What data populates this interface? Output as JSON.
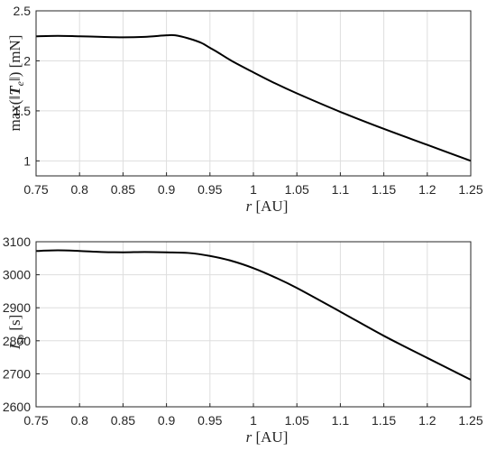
{
  "chart_data": [
    {
      "type": "line",
      "xlabel": "r [AU]",
      "xlabel_var": "r",
      "xlabel_unit": " [AU]",
      "ylabel": "max(‖T_e‖) [mN]",
      "ylabel_pre": "max(‖",
      "ylabel_var": "T",
      "ylabel_sub": "e",
      "ylabel_post": "‖) [mN]",
      "xlim": [
        0.75,
        1.25
      ],
      "ylim": [
        0.85,
        2.5
      ],
      "grid": true,
      "x_ticks": [
        "0.75",
        "0.8",
        "0.85",
        "0.9",
        "0.95",
        "1",
        "1.05",
        "1.1",
        "1.15",
        "1.2",
        "1.25"
      ],
      "y_ticks": [
        "1",
        "1.5",
        "2",
        "2.5"
      ],
      "series": [
        {
          "color": "#000000",
          "x": [
            0.75,
            0.775,
            0.8,
            0.825,
            0.85,
            0.875,
            0.9,
            0.91,
            0.925,
            0.94,
            0.95,
            0.96,
            0.975,
            1.0,
            1.025,
            1.05,
            1.1,
            1.15,
            1.2,
            1.25
          ],
          "y": [
            2.245,
            2.25,
            2.245,
            2.24,
            2.235,
            2.24,
            2.255,
            2.255,
            2.225,
            2.18,
            2.13,
            2.08,
            2.0,
            1.885,
            1.775,
            1.675,
            1.49,
            1.32,
            1.16,
            1.0
          ]
        }
      ]
    },
    {
      "type": "line",
      "xlabel": "r [AU]",
      "xlabel_var": "r",
      "xlabel_unit": " [AU]",
      "ylabel": "I_sp [s]",
      "ylabel_var": "I",
      "ylabel_sub": "sp",
      "ylabel_post": " [s]",
      "xlim": [
        0.75,
        1.25
      ],
      "ylim": [
        2600,
        3100
      ],
      "grid": true,
      "x_ticks": [
        "0.75",
        "0.8",
        "0.85",
        "0.9",
        "0.95",
        "1",
        "1.05",
        "1.1",
        "1.15",
        "1.2",
        "1.25"
      ],
      "y_ticks": [
        "2600",
        "2700",
        "2800",
        "2900",
        "3000",
        "3100"
      ],
      "series": [
        {
          "color": "#000000",
          "x": [
            0.75,
            0.775,
            0.8,
            0.825,
            0.85,
            0.875,
            0.9,
            0.925,
            0.95,
            0.975,
            1.0,
            1.025,
            1.05,
            1.1,
            1.15,
            1.2,
            1.25
          ],
          "y": [
            3072,
            3074,
            3072,
            3069,
            3068,
            3069,
            3068,
            3066,
            3057,
            3042,
            3020,
            2992,
            2960,
            2888,
            2815,
            2748,
            2682
          ]
        }
      ]
    }
  ]
}
